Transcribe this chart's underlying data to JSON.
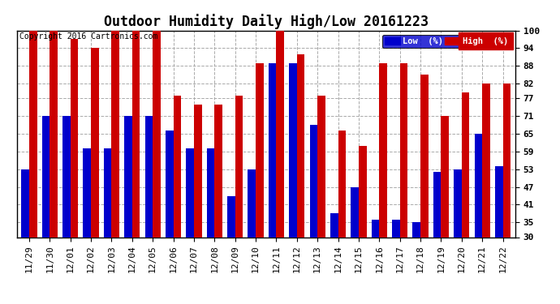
{
  "title": "Outdoor Humidity Daily High/Low 20161223",
  "copyright": "Copyright 2016 Cartronics.com",
  "categories": [
    "11/29",
    "11/30",
    "12/01",
    "12/02",
    "12/03",
    "12/04",
    "12/05",
    "12/06",
    "12/07",
    "12/08",
    "12/09",
    "12/10",
    "12/11",
    "12/12",
    "12/13",
    "12/14",
    "12/15",
    "12/16",
    "12/17",
    "12/18",
    "12/19",
    "12/20",
    "12/21",
    "12/22"
  ],
  "low_values": [
    53,
    71,
    71,
    60,
    60,
    71,
    71,
    66,
    60,
    60,
    44,
    53,
    89,
    89,
    68,
    38,
    47,
    36,
    36,
    35,
    52,
    53,
    65,
    54
  ],
  "high_values": [
    100,
    100,
    97,
    94,
    100,
    100,
    100,
    78,
    75,
    75,
    78,
    89,
    100,
    92,
    78,
    66,
    61,
    89,
    89,
    85,
    71,
    79,
    82,
    82
  ],
  "bar_color_low": "#0000cc",
  "bar_color_high": "#cc0000",
  "background_color": "#ffffff",
  "grid_color": "#aaaaaa",
  "ylim_min": 30,
  "ylim_max": 100,
  "yticks": [
    30,
    35,
    41,
    47,
    53,
    59,
    65,
    71,
    77,
    82,
    88,
    94,
    100
  ],
  "legend_low_label": "Low  (%)",
  "legend_high_label": "High  (%)",
  "bar_width": 0.38,
  "title_fontsize": 12,
  "tick_fontsize": 8,
  "copyright_fontsize": 7
}
